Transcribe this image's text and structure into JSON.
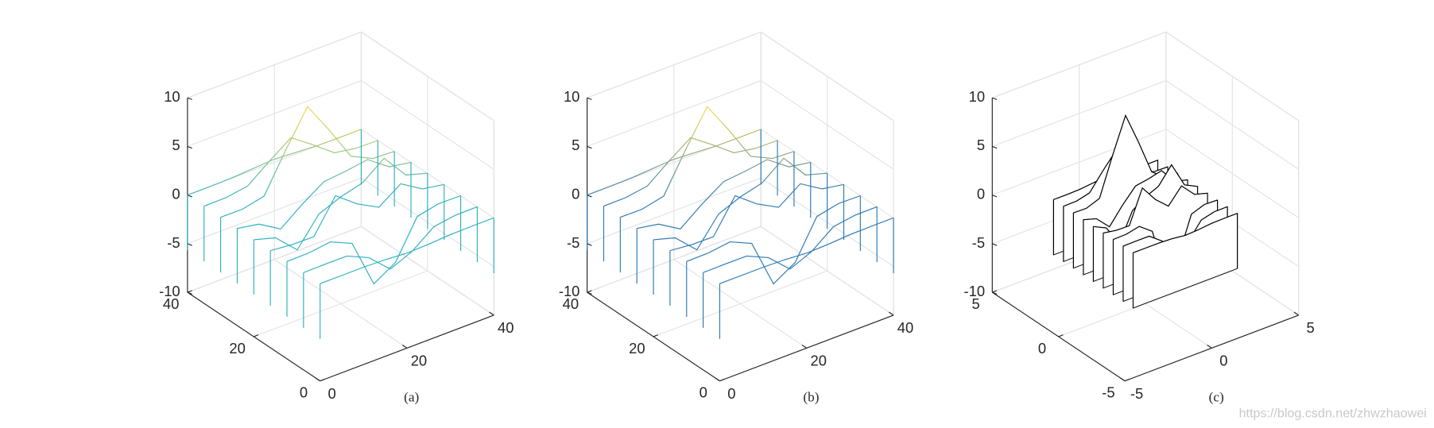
{
  "chart_data": [
    {
      "type": "waterfall",
      "caption": "(a)",
      "x": [
        0,
        5,
        10,
        15,
        20,
        25,
        30,
        35,
        40
      ],
      "y": [
        0,
        5,
        10,
        15,
        20,
        25,
        30,
        35,
        40
      ],
      "z": [
        [
          0,
          0,
          0,
          -0.07,
          -0.24,
          -0.17,
          -0.03,
          0,
          0
        ],
        [
          0,
          0.02,
          0.01,
          -1.0,
          -3.02,
          -2.05,
          -0.35,
          -0.01,
          0
        ],
        [
          0,
          0.03,
          0.33,
          -0.68,
          -5.68,
          -4.31,
          -0.44,
          0.05,
          0
        ],
        [
          -0.02,
          -0.25,
          -0.28,
          3.09,
          1.4,
          0.21,
          1.78,
          0.41,
          0.02
        ],
        [
          -0.04,
          -0.69,
          -2.77,
          0.07,
          0.98,
          1.57,
          3.27,
          0.7,
          0.03
        ],
        [
          -0.02,
          -0.42,
          -1.76,
          -0.05,
          1.42,
          1.65,
          1.99,
          0.4,
          0.02
        ],
        [
          0,
          -0.03,
          0.48,
          4.37,
          7.99,
          4.72,
          1.19,
          0.12,
          0
        ],
        [
          0,
          0.02,
          0.36,
          2.07,
          3.65,
          2.09,
          0.41,
          0.03,
          0
        ],
        [
          0,
          0,
          0.03,
          0.17,
          0.3,
          0.17,
          0.03,
          0,
          0
        ]
      ],
      "xlim": [
        0,
        40
      ],
      "ylim": [
        0,
        40
      ],
      "zlim": [
        -10,
        10
      ],
      "xticks": [
        0,
        20,
        40
      ],
      "yticks": [
        0,
        20,
        40
      ],
      "zticks": [
        -10,
        -5,
        0,
        5,
        10
      ],
      "colors": [
        "#ecd54a",
        "#2bb0bf"
      ],
      "filled": false,
      "grid": true
    },
    {
      "type": "waterfall",
      "caption": "(b)",
      "x": [
        0,
        5,
        10,
        15,
        20,
        25,
        30,
        35,
        40
      ],
      "y": [
        0,
        5,
        10,
        15,
        20,
        25,
        30,
        35,
        40
      ],
      "z": [
        [
          0,
          0,
          0,
          -0.07,
          -0.24,
          -0.17,
          -0.03,
          0,
          0
        ],
        [
          0,
          0.02,
          0.01,
          -1.0,
          -3.02,
          -2.05,
          -0.35,
          -0.01,
          0
        ],
        [
          0,
          0.03,
          0.33,
          -0.68,
          -5.68,
          -4.31,
          -0.44,
          0.05,
          0
        ],
        [
          -0.02,
          -0.25,
          -0.28,
          3.09,
          1.4,
          0.21,
          1.78,
          0.41,
          0.02
        ],
        [
          -0.04,
          -0.69,
          -2.77,
          0.07,
          0.98,
          1.57,
          3.27,
          0.7,
          0.03
        ],
        [
          -0.02,
          -0.42,
          -1.76,
          -0.05,
          1.42,
          1.65,
          1.99,
          0.4,
          0.02
        ],
        [
          0,
          -0.03,
          0.48,
          4.37,
          7.99,
          4.72,
          1.19,
          0.12,
          0
        ],
        [
          0,
          0.02,
          0.36,
          2.07,
          3.65,
          2.09,
          0.41,
          0.03,
          0
        ],
        [
          0,
          0,
          0.03,
          0.17,
          0.3,
          0.17,
          0.03,
          0,
          0
        ]
      ],
      "xlim": [
        0,
        40
      ],
      "ylim": [
        0,
        40
      ],
      "zlim": [
        -10,
        10
      ],
      "xticks": [
        0,
        20,
        40
      ],
      "yticks": [
        0,
        20,
        40
      ],
      "zticks": [
        -10,
        -5,
        0,
        5,
        10
      ],
      "colors": [
        "#e9d44e",
        "#2a78b4"
      ],
      "filled": false,
      "grid": true
    },
    {
      "type": "waterfall",
      "caption": "(c)",
      "x": [
        -3,
        -2.25,
        -1.5,
        -0.75,
        0,
        0.75,
        1.5,
        2.25,
        3
      ],
      "y": [
        -3,
        -2.25,
        -1.5,
        -0.75,
        0,
        0.75,
        1.5,
        2.25,
        3
      ],
      "z": [
        [
          0,
          0,
          0,
          -0.07,
          -0.24,
          -0.17,
          -0.03,
          0,
          0
        ],
        [
          0,
          0.02,
          0.01,
          -1.0,
          -3.02,
          -2.05,
          -0.35,
          -0.01,
          0
        ],
        [
          0,
          0.03,
          0.33,
          -0.68,
          -5.68,
          -4.31,
          -0.44,
          0.05,
          0
        ],
        [
          -0.02,
          -0.25,
          -0.28,
          3.09,
          1.4,
          0.21,
          1.78,
          0.41,
          0.02
        ],
        [
          -0.04,
          -0.69,
          -2.77,
          0.07,
          0.98,
          1.57,
          3.27,
          0.7,
          0.03
        ],
        [
          -0.02,
          -0.42,
          -1.76,
          -0.05,
          1.42,
          1.65,
          1.99,
          0.4,
          0.02
        ],
        [
          0,
          -0.03,
          0.48,
          4.37,
          7.99,
          4.72,
          1.19,
          0.12,
          0
        ],
        [
          0,
          0.02,
          0.36,
          2.07,
          3.65,
          2.09,
          0.41,
          0.03,
          0
        ],
        [
          0,
          0,
          0.03,
          0.17,
          0.3,
          0.17,
          0.03,
          0,
          0
        ]
      ],
      "xlim": [
        -5,
        5
      ],
      "ylim": [
        -5,
        5
      ],
      "zlim": [
        -10,
        10
      ],
      "xticks": [
        -5,
        0,
        5
      ],
      "yticks": [
        -5,
        0,
        5
      ],
      "zticks": [
        -10,
        -5,
        0,
        5,
        10
      ],
      "colors": [
        "#000000",
        "#000000"
      ],
      "filled": true,
      "grid": true
    }
  ],
  "watermark": "https://blog.csdn.net/zhwzhaowei"
}
